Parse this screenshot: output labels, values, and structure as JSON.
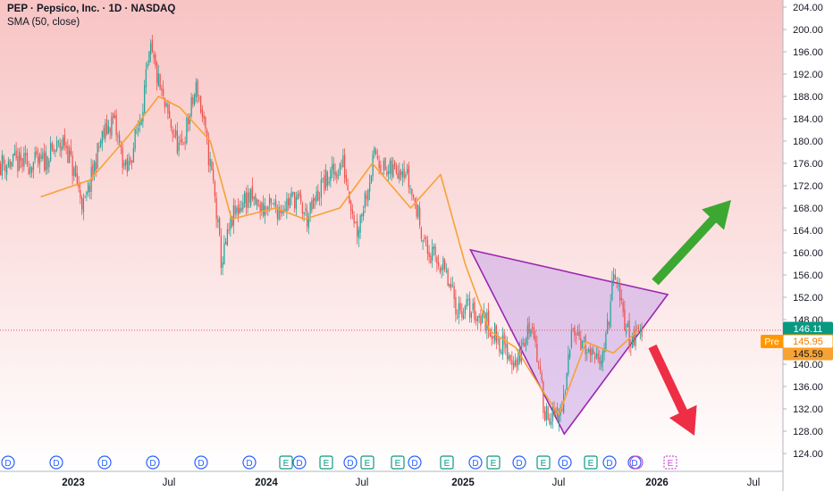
{
  "header": {
    "symbol_line": "PEP · Pepsico, Inc. · 1D · NASDAQ",
    "indicator_line": "SMA (50, close)"
  },
  "price_axis": {
    "ticks": [
      "204.00",
      "200.00",
      "196.00",
      "192.00",
      "188.00",
      "184.00",
      "180.00",
      "176.00",
      "172.00",
      "168.00",
      "164.00",
      "160.00",
      "156.00",
      "152.00",
      "148.00",
      "144.00",
      "140.00",
      "136.00",
      "132.00",
      "128.00",
      "124.00"
    ],
    "last_price_label": "146.11",
    "pre_label": "Pre",
    "pre_price_label": "145.95",
    "sma_label": "145.59"
  },
  "time_axis": {
    "labels": [
      "2023",
      "Jul",
      "2024",
      "Jul",
      "2025",
      "Jul",
      "2026",
      "Jul"
    ]
  },
  "events": {
    "items": [
      "D",
      "D",
      "D",
      "D",
      "D",
      "D",
      "E",
      "D",
      "E",
      "D",
      "E",
      "E",
      "D",
      "E",
      "D",
      "E",
      "D",
      "E",
      "D",
      "E",
      "D",
      "D",
      "E"
    ]
  },
  "colors": {
    "up": "#26a69a",
    "down": "#ef5350",
    "sma": "#f7a235",
    "triangle_fill": "#c9a6e8",
    "triangle_stroke": "#9c27b0",
    "green_arrow": "#3ca832",
    "red_arrow": "#ee2e45",
    "background_top": "#f9c9c9"
  },
  "chart_data": {
    "type": "candlestick",
    "title": "PEP · Pepsico, Inc. · 1D · NASDAQ",
    "ylim": [
      122,
      206
    ],
    "y_scale": "linear",
    "grid": false,
    "close_path_approx": {
      "x": [
        "2022-11-01",
        "2022-12-15",
        "2023-01-20",
        "2023-02-20",
        "2023-03-15",
        "2023-04-10",
        "2023-05-05",
        "2023-05-25",
        "2023-06-20",
        "2023-07-20",
        "2023-08-20",
        "2023-09-20",
        "2023-10-05",
        "2023-10-25",
        "2023-11-20",
        "2023-12-20",
        "2024-01-20",
        "2024-02-20",
        "2024-03-15",
        "2024-04-10",
        "2024-05-20",
        "2024-06-15",
        "2024-07-20",
        "2024-08-10",
        "2024-09-10",
        "2024-10-10",
        "2024-10-25",
        "2024-11-20",
        "2024-12-20",
        "2025-01-10",
        "2025-02-10",
        "2025-03-10",
        "2025-04-10",
        "2025-05-10",
        "2025-06-01",
        "2025-06-25",
        "2025-07-10",
        "2025-07-25",
        "2025-08-20",
        "2025-09-05",
        "2025-09-25",
        "2025-10-10",
        "2025-10-25",
        "2025-11-10",
        "2025-11-25"
      ],
      "close": [
        176,
        180,
        168,
        180,
        184,
        174,
        184,
        196,
        186,
        178,
        190,
        172,
        158,
        166,
        170,
        168,
        168,
        170,
        166,
        172,
        176,
        164,
        178,
        174,
        176,
        166,
        160,
        158,
        150,
        150,
        148,
        144,
        140,
        148,
        132,
        130,
        134,
        148,
        142,
        140,
        144,
        156,
        150,
        144,
        146
      ]
    },
    "sma50_approx": {
      "x": [
        "2022-11-01",
        "2023-02-01",
        "2023-04-15",
        "2023-06-10",
        "2023-07-20",
        "2023-09-15",
        "2023-10-25",
        "2024-01-15",
        "2024-03-10",
        "2024-05-15",
        "2024-07-15",
        "2024-09-25",
        "2024-11-20",
        "2025-01-05",
        "2025-02-20",
        "2025-04-10",
        "2025-05-25",
        "2025-06-30",
        "2025-08-20",
        "2025-10-10",
        "2025-11-25"
      ],
      "value": [
        170,
        173,
        181,
        188,
        186,
        180,
        166,
        168,
        166,
        168,
        176,
        168,
        174,
        158,
        146,
        143,
        136,
        131,
        144,
        142,
        146
      ]
    },
    "last_price": 146.11,
    "premarket_price": 145.95,
    "sma50_last": 145.59,
    "annotations": [
      {
        "type": "triangle",
        "points": [
          [
            "2025-01-15",
            160.5
          ],
          [
            "2025-07-10",
            127.5
          ],
          [
            "2026-01-20",
            152.5
          ]
        ]
      },
      {
        "type": "arrow",
        "direction": "up"
      },
      {
        "type": "arrow",
        "direction": "down"
      }
    ]
  }
}
